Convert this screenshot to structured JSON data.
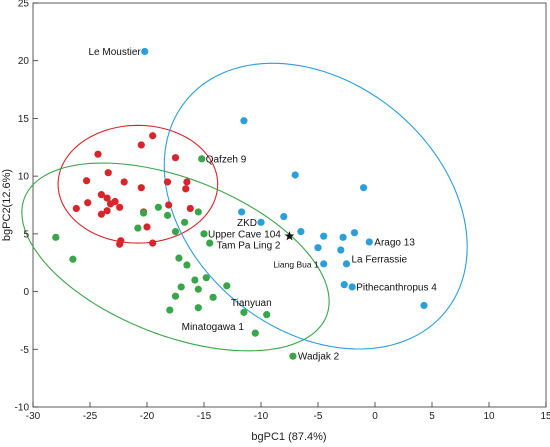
{
  "chart_data": {
    "type": "scatter",
    "title": "",
    "xlabel": "bgPC1 (87.4%)",
    "ylabel": "bgPC2(12.6%)",
    "xlim": [
      -30,
      15
    ],
    "ylim": [
      -10,
      25
    ],
    "xticks": [
      -30,
      -25,
      -20,
      -15,
      -10,
      -5,
      0,
      5,
      10,
      15
    ],
    "yticks": [
      -10,
      -5,
      0,
      5,
      10,
      15,
      20,
      25
    ],
    "grid": false,
    "colors": {
      "red": "#d7262b",
      "green": "#3aa54a",
      "blue": "#2a9fd8",
      "star": "#111111"
    },
    "series": [
      {
        "color": "red",
        "points": [
          [
            -19.5,
            13.5
          ],
          [
            -20.5,
            12.7
          ],
          [
            -24.3,
            11.9
          ],
          [
            -17.5,
            11.6
          ],
          [
            -23.4,
            10.3
          ],
          [
            -25.3,
            9.6
          ],
          [
            -22.0,
            9.5
          ],
          [
            -18.2,
            9.5
          ],
          [
            -16.5,
            9.5
          ],
          [
            -20.5,
            9.0
          ],
          [
            -16.6,
            8.9
          ],
          [
            -24.0,
            8.4
          ],
          [
            -23.5,
            8.1
          ],
          [
            -22.8,
            7.8
          ],
          [
            -25.2,
            7.7
          ],
          [
            -23.2,
            7.6
          ],
          [
            -18.1,
            7.5
          ],
          [
            -26.2,
            7.2
          ],
          [
            -22.4,
            7.3
          ],
          [
            -23.5,
            7.0
          ],
          [
            -20.3,
            6.9
          ],
          [
            -24.0,
            6.7
          ],
          [
            -16.2,
            7.2
          ],
          [
            -20.0,
            5.6
          ],
          [
            -22.3,
            4.4
          ],
          [
            -22.4,
            4.1
          ],
          [
            -19.5,
            4.2
          ]
        ]
      },
      {
        "color": "green",
        "points": [
          [
            -15.2,
            11.5
          ],
          [
            -19.0,
            7.3
          ],
          [
            -18.2,
            6.6
          ],
          [
            -15.5,
            6.9
          ],
          [
            -20.3,
            6.8
          ],
          [
            -16.7,
            6.0
          ],
          [
            -20.8,
            5.5
          ],
          [
            -17.5,
            5.2
          ],
          [
            -15.0,
            5.0
          ],
          [
            -14.5,
            4.2
          ],
          [
            -28.0,
            4.7
          ],
          [
            -26.5,
            2.8
          ],
          [
            -17.2,
            2.9
          ],
          [
            -16.5,
            2.3
          ],
          [
            -14.8,
            1.2
          ],
          [
            -15.8,
            1.0
          ],
          [
            -17.0,
            0.4
          ],
          [
            -13.0,
            0.5
          ],
          [
            -15.5,
            0.2
          ],
          [
            -17.5,
            -0.4
          ],
          [
            -14.2,
            -0.5
          ],
          [
            -15.5,
            -1.4
          ],
          [
            -18.0,
            -1.6
          ],
          [
            -11.5,
            -1.8
          ],
          [
            -9.5,
            -2.0
          ],
          [
            -10.5,
            -3.6
          ],
          [
            -7.2,
            -5.6
          ]
        ]
      },
      {
        "color": "blue",
        "points": [
          [
            -20.2,
            20.8
          ],
          [
            -11.5,
            14.8
          ],
          [
            -7.0,
            10.1
          ],
          [
            -1.0,
            9.0
          ],
          [
            -11.7,
            6.9
          ],
          [
            -8.0,
            6.5
          ],
          [
            -10.0,
            6.0
          ],
          [
            -6.5,
            5.2
          ],
          [
            -1.8,
            5.1
          ],
          [
            -2.8,
            4.7
          ],
          [
            -4.5,
            4.8
          ],
          [
            -0.5,
            4.3
          ],
          [
            -3.0,
            3.6
          ],
          [
            -5.0,
            3.8
          ],
          [
            -2.5,
            2.4
          ],
          [
            -4.5,
            2.4
          ],
          [
            -2.7,
            0.6
          ],
          [
            -2.0,
            0.4
          ],
          [
            4.3,
            -1.2
          ]
        ]
      }
    ],
    "star": [
      -7.5,
      4.8
    ],
    "ellipses": [
      {
        "color": "red",
        "cx": -20.8,
        "cy": 9.3,
        "rx": 7.0,
        "ry": 5.1,
        "angle_deg": 0
      },
      {
        "color": "green",
        "cx": -17.5,
        "cy": 3.0,
        "rx": 14.2,
        "ry": 6.8,
        "angle_deg": -21
      },
      {
        "color": "blue",
        "cx": -5.2,
        "cy": 7.4,
        "rx": 14.6,
        "ry": 10.8,
        "angle_deg": -38
      }
    ],
    "annotations": [
      {
        "text": "Le Moustier",
        "x": -20.2,
        "y": 20.8,
        "anchor": "end",
        "dx": -4,
        "small": false
      },
      {
        "text": "Qafzeh 9",
        "x": -15.2,
        "y": 11.5,
        "anchor": "start",
        "dx": 4,
        "small": false
      },
      {
        "text": "ZKD",
        "x": -10.0,
        "y": 6.0,
        "anchor": "end",
        "dx": -4,
        "small": false
      },
      {
        "text": "Upper Cave 104",
        "x": -15.0,
        "y": 5.0,
        "anchor": "start",
        "dx": 4,
        "small": false
      },
      {
        "text": "Tam Pa Ling 2",
        "x": -7.5,
        "y": 4.8,
        "anchor": "end",
        "dx": -9,
        "dy": 9,
        "small": false
      },
      {
        "text": "Arago 13",
        "x": -0.5,
        "y": 4.3,
        "anchor": "start",
        "dx": 5,
        "small": false
      },
      {
        "text": "Liang Bua 1",
        "x": -4.5,
        "y": 2.4,
        "anchor": "end",
        "dx": -5,
        "small": true
      },
      {
        "text": "La Ferrassie",
        "x": -2.5,
        "y": 2.4,
        "anchor": "start",
        "dx": 5,
        "dy": -5,
        "small": false
      },
      {
        "text": "Pithecanthropus 4",
        "x": -2.0,
        "y": 0.4,
        "anchor": "start",
        "dx": 4,
        "small": false
      },
      {
        "text": "Tianyuan",
        "x": -9.5,
        "y": -2.0,
        "anchor": "end",
        "dx": 5,
        "dy": -12,
        "small": false
      },
      {
        "text": "Minatogawa 1",
        "x": -11.5,
        "y": -1.8,
        "anchor": "end",
        "dx": 0,
        "dy": 14,
        "small": false
      },
      {
        "text": "Wadjak 2",
        "x": -7.2,
        "y": -5.6,
        "anchor": "start",
        "dx": 5,
        "small": false
      }
    ]
  }
}
